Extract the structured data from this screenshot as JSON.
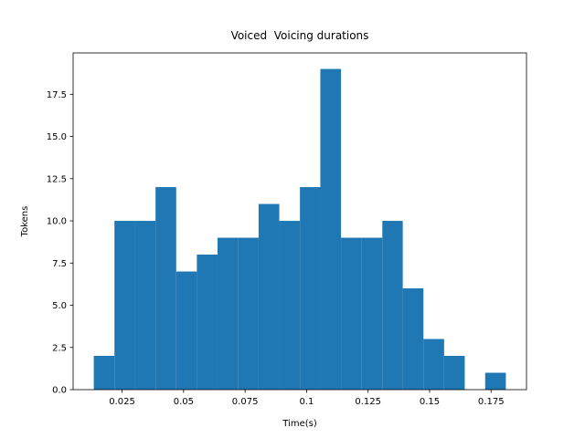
{
  "chart_data": {
    "type": "histogram",
    "title": "Voiced  Voicing durations",
    "xlabel": "Time(s)",
    "ylabel": "Tokens",
    "bins": [
      0.0135,
      0.0219,
      0.0302,
      0.0386,
      0.047,
      0.0554,
      0.0638,
      0.0721,
      0.0805,
      0.0889,
      0.0973,
      0.1056,
      0.114,
      0.1224,
      0.1308,
      0.1391,
      0.1475,
      0.1559,
      0.1643,
      0.1726,
      0.181
    ],
    "values": [
      2,
      10,
      10,
      12,
      7,
      8,
      9,
      9,
      11,
      10,
      12,
      19,
      9,
      9,
      10,
      6,
      3,
      2,
      0,
      1
    ],
    "color": "#1f77b4",
    "xlim": [
      0.0051,
      0.1894
    ],
    "xticks": [
      0.025,
      0.05,
      0.075,
      0.1,
      0.125,
      0.15,
      0.175
    ],
    "ylim": [
      0,
      19.95
    ],
    "yticks": [
      {
        "value": 0,
        "label": "0.0"
      },
      2.5,
      {
        "value": 5,
        "label": "5.0"
      },
      7.5,
      {
        "value": 10,
        "label": "10.0"
      },
      12.5,
      {
        "value": 15,
        "label": "15.0"
      },
      17.5
    ],
    "grid": false
  }
}
